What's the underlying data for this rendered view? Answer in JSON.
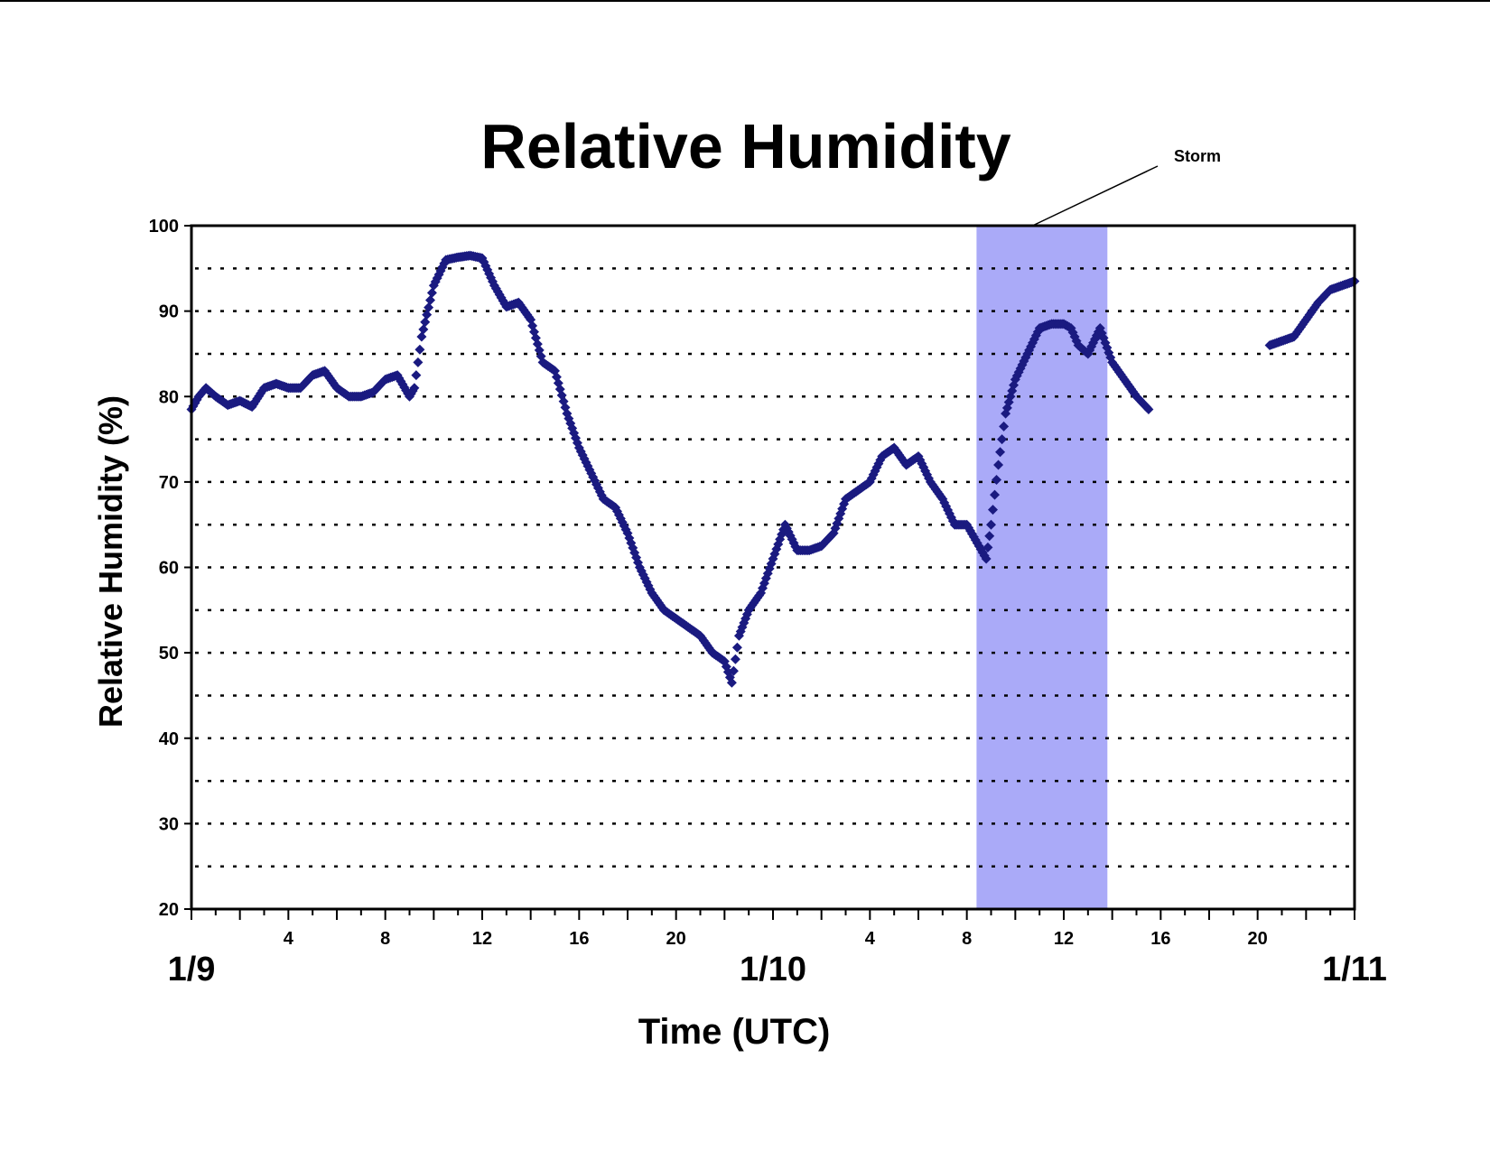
{
  "chart_data": {
    "type": "scatter",
    "title": "Relative Humidity",
    "xlabel": "Time (UTC)",
    "ylabel": "Relative Humidity (%)",
    "ylim": [
      20,
      100
    ],
    "yticks": [
      20,
      30,
      40,
      50,
      60,
      70,
      80,
      90,
      100
    ],
    "grid": "dotted horizontal lines every 5 units",
    "xlim_hours": [
      0,
      48
    ],
    "x_unit": "hours since 1/9 00 UTC",
    "hour_tick_labels": [
      {
        "hour": 4,
        "label": "4"
      },
      {
        "hour": 8,
        "label": "8"
      },
      {
        "hour": 12,
        "label": "12"
      },
      {
        "hour": 16,
        "label": "16"
      },
      {
        "hour": 20,
        "label": "20"
      },
      {
        "hour": 28,
        "label": "4"
      },
      {
        "hour": 32,
        "label": "8"
      },
      {
        "hour": 36,
        "label": "12"
      },
      {
        "hour": 40,
        "label": "16"
      },
      {
        "hour": 44,
        "label": "20"
      }
    ],
    "date_labels": [
      {
        "hour": 0,
        "label": "1/9"
      },
      {
        "hour": 24,
        "label": "1/10"
      },
      {
        "hour": 48,
        "label": "1/11"
      }
    ],
    "shaded_region": {
      "label": "Storm",
      "x_start_hours": 32.4,
      "x_end_hours": 37.8,
      "color": "#aaaaf8"
    },
    "marker_color": "#1a1a80",
    "series": [
      {
        "segments": [
          [
            [
              0,
              78.5
            ],
            [
              0.3,
              80
            ],
            [
              0.6,
              81
            ],
            [
              1,
              80
            ],
            [
              1.5,
              79
            ],
            [
              2,
              79.5
            ],
            [
              2.5,
              78.8
            ],
            [
              3,
              81
            ],
            [
              3.5,
              81.5
            ],
            [
              4,
              81
            ],
            [
              4.5,
              81
            ],
            [
              5,
              82.5
            ],
            [
              5.5,
              83
            ],
            [
              6,
              81
            ],
            [
              6.5,
              80
            ],
            [
              7,
              80
            ],
            [
              7.5,
              80.5
            ],
            [
              8,
              82
            ],
            [
              8.5,
              82.5
            ],
            [
              9,
              80
            ],
            [
              9.2,
              81
            ],
            [
              9.5,
              87
            ],
            [
              10,
              93
            ],
            [
              10.5,
              96
            ],
            [
              11,
              96.3
            ],
            [
              11.5,
              96.5
            ],
            [
              12,
              96.2
            ],
            [
              12.5,
              93
            ],
            [
              13,
              90.5
            ],
            [
              13.5,
              91
            ],
            [
              14,
              89
            ],
            [
              14.5,
              84
            ],
            [
              15,
              83
            ],
            [
              15.5,
              78
            ],
            [
              16,
              74
            ],
            [
              16.5,
              71
            ],
            [
              17,
              68
            ],
            [
              17.5,
              67
            ],
            [
              18,
              64
            ],
            [
              18.5,
              60
            ],
            [
              19,
              57
            ],
            [
              19.5,
              55
            ],
            [
              20,
              54
            ],
            [
              20.5,
              53
            ],
            [
              21,
              52
            ],
            [
              21.5,
              50
            ],
            [
              22,
              49
            ],
            [
              22.3,
              46.5
            ],
            [
              22.6,
              52
            ],
            [
              23,
              55
            ],
            [
              23.5,
              57
            ],
            [
              24,
              61
            ],
            [
              24.5,
              65
            ],
            [
              25,
              62
            ],
            [
              25.5,
              62
            ],
            [
              26,
              62.5
            ],
            [
              26.5,
              64
            ],
            [
              27,
              68
            ],
            [
              27.5,
              69
            ],
            [
              28,
              70
            ],
            [
              28.5,
              73
            ],
            [
              29,
              74
            ],
            [
              29.5,
              72
            ],
            [
              30,
              73
            ],
            [
              30.5,
              70
            ],
            [
              31,
              68
            ],
            [
              31.5,
              65
            ],
            [
              32,
              65
            ],
            [
              32.5,
              62.5
            ],
            [
              32.8,
              61
            ],
            [
              33,
              65
            ],
            [
              33.3,
              72
            ],
            [
              33.6,
              78
            ],
            [
              34,
              82
            ],
            [
              34.5,
              85
            ],
            [
              35,
              88
            ],
            [
              35.5,
              88.5
            ],
            [
              36,
              88.5
            ],
            [
              36.3,
              88
            ],
            [
              36.6,
              86
            ],
            [
              37,
              85
            ],
            [
              37.5,
              88
            ],
            [
              38,
              84
            ],
            [
              38.5,
              82
            ],
            [
              39,
              80
            ],
            [
              39.5,
              78.5
            ]
          ],
          [
            [
              44.5,
              86
            ],
            [
              45,
              86.5
            ],
            [
              45.5,
              87
            ],
            [
              46,
              89
            ],
            [
              46.5,
              91
            ],
            [
              47,
              92.5
            ],
            [
              47.5,
              93
            ],
            [
              48,
              93.5
            ]
          ]
        ]
      }
    ]
  }
}
